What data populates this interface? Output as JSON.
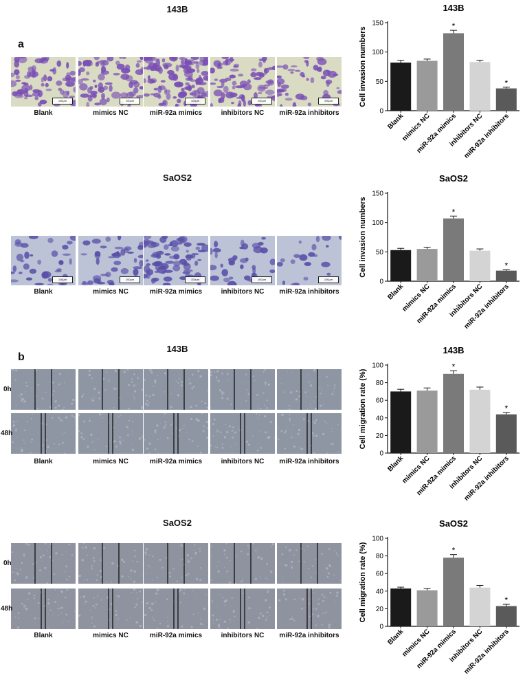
{
  "panels": {
    "a": {
      "letter": "a",
      "rows": [
        {
          "cell_line": "143B",
          "scale_label": "100μm",
          "stain": "#7a4fb5",
          "bg": "#d9dcc3"
        },
        {
          "cell_line": "SaOS2",
          "scale_label": "100μm",
          "stain": "#5a4fa8",
          "bg": "#bcc3d6"
        }
      ]
    },
    "b": {
      "letter": "b",
      "time_labels": [
        "0h",
        "48h"
      ],
      "rows": [
        {
          "cell_line": "143B",
          "bg": "#8e96a4"
        },
        {
          "cell_line": "SaOS2",
          "bg": "#8f93a0"
        }
      ]
    }
  },
  "groups": [
    "Blank",
    "mimics NC",
    "miR-92a mimics",
    "inhibitors NC",
    "miR-92a inhibitors"
  ],
  "bar_colors": [
    "#1a1a1a",
    "#9a9a9a",
    "#7a7a7a",
    "#d4d4d4",
    "#5a5a5a"
  ],
  "significance_marker": "*",
  "chart_data": [
    {
      "type": "bar",
      "title": "143B",
      "ylabel": "Cell invasion numbers",
      "categories": [
        "Blank",
        "mimics NC",
        "miR-92a mimics",
        "inhibitors NC",
        "miR-92a inhibitors"
      ],
      "values": [
        82,
        85,
        132,
        83,
        38
      ],
      "errors": [
        4,
        3,
        5,
        3,
        2
      ],
      "significant": [
        false,
        false,
        true,
        false,
        true
      ],
      "ylim": [
        0,
        150
      ],
      "yticks": [
        0,
        50,
        100,
        150
      ]
    },
    {
      "type": "bar",
      "title": "SaOS2",
      "ylabel": "Cell invasion numbers",
      "categories": [
        "Blank",
        "mimics NC",
        "miR-92a mimics",
        "inhibitors NC",
        "miR-92a inhibitors"
      ],
      "values": [
        53,
        55,
        107,
        52,
        18
      ],
      "errors": [
        3,
        3,
        4,
        3,
        1.5
      ],
      "significant": [
        false,
        false,
        true,
        false,
        true
      ],
      "ylim": [
        0,
        150
      ],
      "yticks": [
        0,
        50,
        100,
        150
      ]
    },
    {
      "type": "bar",
      "title": "143B",
      "ylabel": "Cell migration rate (%)",
      "categories": [
        "Blank",
        "mimics NC",
        "miR-92a mimics",
        "inhibitors NC",
        "miR-92a inhibitors"
      ],
      "values": [
        70,
        71,
        90,
        72,
        44
      ],
      "errors": [
        2.5,
        3,
        3.5,
        3,
        2
      ],
      "significant": [
        false,
        false,
        true,
        false,
        true
      ],
      "ylim": [
        0,
        100
      ],
      "yticks": [
        0,
        20,
        40,
        60,
        80,
        100
      ]
    },
    {
      "type": "bar",
      "title": "SaOS2",
      "ylabel": "Cell migration rate (%)",
      "categories": [
        "Blank",
        "mimics NC",
        "miR-92a mimics",
        "inhibitors NC",
        "miR-92a inhibitors"
      ],
      "values": [
        43,
        41,
        78,
        44,
        23
      ],
      "errors": [
        1.5,
        2,
        3.5,
        2.5,
        2
      ],
      "significant": [
        false,
        false,
        true,
        false,
        true
      ],
      "ylim": [
        0,
        100
      ],
      "yticks": [
        0,
        20,
        40,
        60,
        80,
        100
      ]
    }
  ]
}
